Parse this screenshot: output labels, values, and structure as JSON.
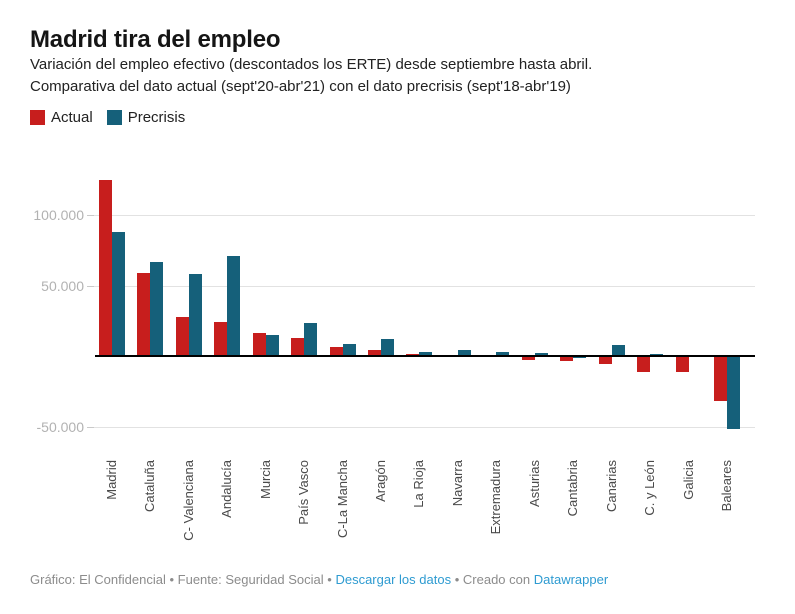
{
  "header": {
    "title": "Madrid tira del empleo",
    "subtitle_line1": "Variación del empleo efectivo (descontados los ERTE) desde septiembre hasta abril.",
    "subtitle_line2": "Comparativa del dato actual (sept'20-abr'21) con el dato precrisis (sept'18-abr'19)"
  },
  "footer": {
    "credit": "Gráfico: El Confidencial",
    "separator": "•",
    "source": "Fuente: Seguridad Social",
    "download_link": "Descargar los datos",
    "created_with": "Creado con",
    "datawrapper_link": "Datawrapper",
    "link_color": "#2e9bd1",
    "text_color": "#8c8c8c"
  },
  "chart_data": {
    "type": "bar",
    "title": "Madrid tira del empleo",
    "categories": [
      "Madrid",
      "Cataluña",
      "C- Valenciana",
      "Andalucía",
      "Murcia",
      "País Vasco",
      "C-La Mancha",
      "Aragón",
      "La Rioja",
      "Navarra",
      "Extremadura",
      "Asturias",
      "Cantabria",
      "Canarias",
      "C. y León",
      "Galicia",
      "Baleares"
    ],
    "series": [
      {
        "name": "Actual",
        "color": "#c71e1d",
        "values": [
          125000,
          59000,
          28000,
          24000,
          16000,
          13000,
          6500,
          4000,
          1500,
          1000,
          -1000,
          -2500,
          -3500,
          -5500,
          -11000,
          -11000,
          -32000
        ]
      },
      {
        "name": "Precrisis",
        "color": "#15607a",
        "values": [
          88000,
          67000,
          58000,
          71000,
          15000,
          23500,
          8500,
          12000,
          3000,
          4500,
          3000,
          2000,
          -1500,
          7500,
          1500,
          1000,
          -52000
        ]
      }
    ],
    "yticks": [
      {
        "value": 100000,
        "label": "100.000"
      },
      {
        "value": 50000,
        "label": "50.000"
      },
      {
        "value": -50000,
        "label": "-50.000"
      }
    ],
    "ylim": [
      -55000,
      135000
    ],
    "grid": true,
    "legend_position": "top-left",
    "xlabel": "",
    "ylabel": ""
  }
}
